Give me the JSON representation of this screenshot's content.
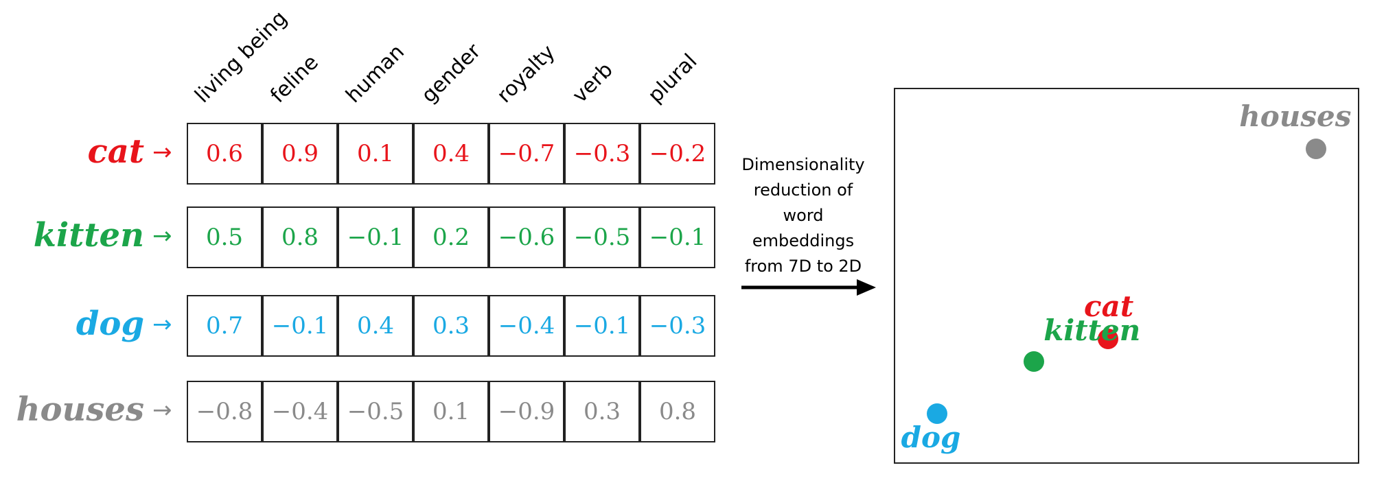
{
  "columns": [
    "living being",
    "feline",
    "human",
    "gender",
    "royalty",
    "verb",
    "plural"
  ],
  "rows": [
    {
      "word": "cat",
      "arrow": "→",
      "color": "#e8141b",
      "values": [
        "0.6",
        "0.9",
        "0.1",
        "0.4",
        "−0.7",
        "−0.3",
        "−0.2"
      ]
    },
    {
      "word": "kitten",
      "arrow": "→",
      "color": "#1ca54a",
      "values": [
        "0.5",
        "0.8",
        "−0.1",
        "0.2",
        "−0.6",
        "−0.5",
        "−0.1"
      ]
    },
    {
      "word": "dog",
      "arrow": "→",
      "color": "#1aa9e3",
      "values": [
        "0.7",
        "−0.1",
        "0.4",
        "0.3",
        "−0.4",
        "−0.1",
        "−0.3"
      ]
    },
    {
      "word": "houses",
      "arrow": "→",
      "color": "#8a8a8a",
      "values": [
        "−0.8",
        "−0.4",
        "−0.5",
        "0.1",
        "−0.9",
        "0.3",
        "0.8"
      ]
    }
  ],
  "caption": [
    "Dimensionality",
    "reduction of",
    "word",
    "embeddings",
    "from 7D to 2D"
  ],
  "projection": {
    "points": [
      {
        "label": "houses",
        "color": "#8a8a8a",
        "x": 0.91,
        "y": 0.84
      },
      {
        "label": "cat",
        "color": "#e8141b",
        "x": 0.46,
        "y": 0.33
      },
      {
        "label": "kitten",
        "color": "#1ca54a",
        "x": 0.3,
        "y": 0.27
      },
      {
        "label": "dog",
        "color": "#1aa9e3",
        "x": 0.09,
        "y": 0.13
      }
    ]
  }
}
